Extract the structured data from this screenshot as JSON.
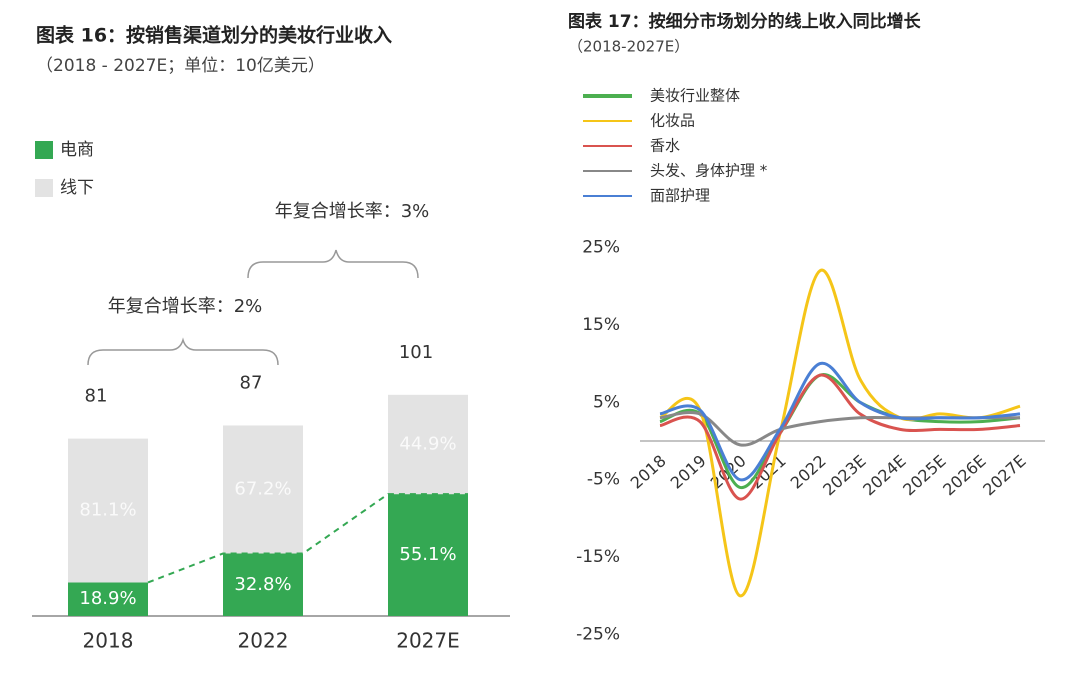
{
  "chart_data": [
    {
      "type": "bar",
      "title": "图表 16：按销售渠道划分的美妆行业收入",
      "subtitle": "（2018 - 2027E；单位：10亿美元）",
      "categories": [
        "2018",
        "2022",
        "2027E"
      ],
      "totals": [
        81,
        87,
        101
      ],
      "series": [
        {
          "name": "电商",
          "color": "#34a853",
          "values": [
            18.9,
            32.8,
            55.1
          ],
          "value_labels": [
            "18.9%",
            "32.8%",
            "55.1%"
          ]
        },
        {
          "name": "线下",
          "color": "#e3e3e3",
          "values": [
            81.1,
            67.2,
            44.9
          ],
          "value_labels": [
            "81.1%",
            "67.2%",
            "44.9%"
          ]
        }
      ],
      "annotations": [
        "年复合增长率：2%",
        "年复合增长率：3%"
      ]
    },
    {
      "type": "line",
      "title": "图表 17：按细分市场划分的线上收入同比增长",
      "subtitle": "（2018-2027E）",
      "categories": [
        "2018",
        "2019",
        "2020",
        "2021",
        "2022",
        "2023E",
        "2024E",
        "2025E",
        "2026E",
        "2027E"
      ],
      "ylim": [
        -25,
        25
      ],
      "yticks": [
        {
          "value": -25,
          "label": "-25%"
        },
        {
          "value": -15,
          "label": "-15%"
        },
        {
          "value": -5,
          "label": "-5%"
        },
        {
          "value": 5,
          "label": "5%"
        },
        {
          "value": 15,
          "label": "15%"
        },
        {
          "value": 25,
          "label": "25%"
        }
      ],
      "series": [
        {
          "name": "美妆行业整体",
          "color": "#4caf50",
          "values": [
            2.5,
            3.5,
            -6,
            1,
            8.5,
            5,
            3,
            2.5,
            2.5,
            3
          ]
        },
        {
          "name": "化妆品",
          "color": "#f5c518",
          "values": [
            3,
            4,
            -20,
            1,
            22,
            8,
            3,
            3.5,
            3,
            4.5
          ]
        },
        {
          "name": "香水",
          "color": "#d9534f",
          "values": [
            2,
            2.5,
            -7.5,
            1,
            8.5,
            3.5,
            1.5,
            1.5,
            1.5,
            2
          ]
        },
        {
          "name": "头发、身体护理 *",
          "color": "#888888",
          "values": [
            3,
            3.5,
            -0.5,
            1.5,
            2.5,
            3,
            3,
            3,
            3,
            3
          ]
        },
        {
          "name": "面部护理",
          "color": "#4a7fd4",
          "values": [
            3.5,
            4,
            -5,
            1.5,
            10,
            5,
            3,
            3,
            3,
            3.5
          ]
        }
      ]
    }
  ]
}
